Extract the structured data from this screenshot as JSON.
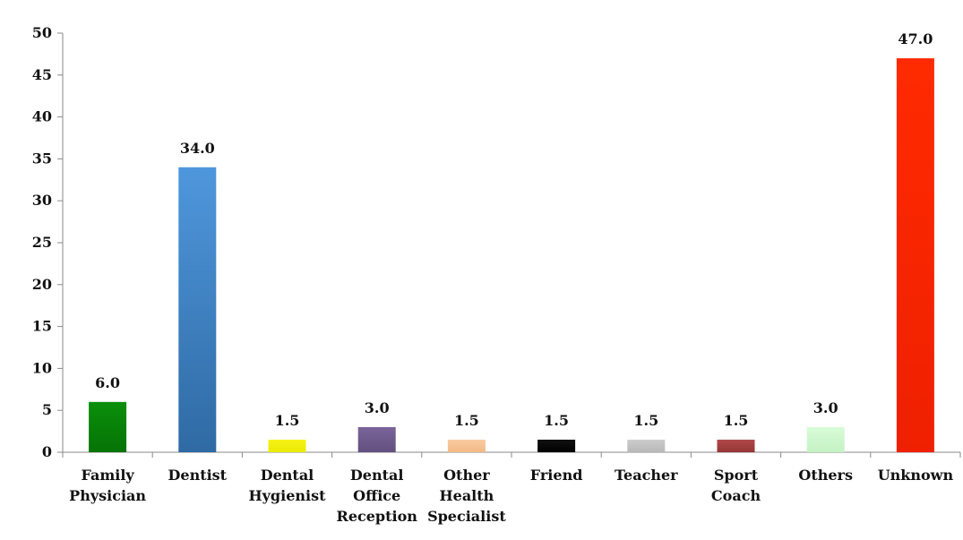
{
  "chart_data": {
    "type": "bar",
    "title": "",
    "xlabel": "",
    "ylabel": "",
    "ylim": [
      0,
      50
    ],
    "yticks": [
      0,
      5,
      10,
      15,
      20,
      25,
      30,
      35,
      40,
      45,
      50
    ],
    "grid": false,
    "legend": "none",
    "categories": [
      [
        "Family",
        "Physician"
      ],
      [
        "Dentist"
      ],
      [
        "Dental",
        "Hygienist"
      ],
      [
        "Dental",
        "Office",
        "Reception"
      ],
      [
        "Other",
        "Health",
        "Specialist"
      ],
      [
        "Friend"
      ],
      [
        "Teacher"
      ],
      [
        "Sport",
        "Coach"
      ],
      [
        "Others"
      ],
      [
        "Unknown"
      ]
    ],
    "values": [
      6.0,
      34.0,
      1.5,
      3.0,
      1.5,
      1.5,
      1.5,
      1.5,
      3.0,
      47.0
    ],
    "data_labels": [
      "6.0",
      "34.0",
      "1.5",
      "3.0",
      "1.5",
      "1.5",
      "1.5",
      "1.5",
      "3.0",
      "47.0"
    ],
    "colors": [
      [
        "#0a8f0a",
        "#067306"
      ],
      [
        "#4f97dc",
        "#2f6aa4"
      ],
      [
        "#f7f21a",
        "#eaea00"
      ],
      [
        "#7a6499",
        "#63507f"
      ],
      [
        "#f9cba0",
        "#f2b986"
      ],
      [
        "#111111",
        "#000000"
      ],
      [
        "#cccccc",
        "#b8b8b8"
      ],
      [
        "#b04848",
        "#963636"
      ],
      [
        "#d8fbd8",
        "#c4f2c4"
      ],
      [
        "#ff2a00",
        "#ef2000"
      ]
    ]
  }
}
